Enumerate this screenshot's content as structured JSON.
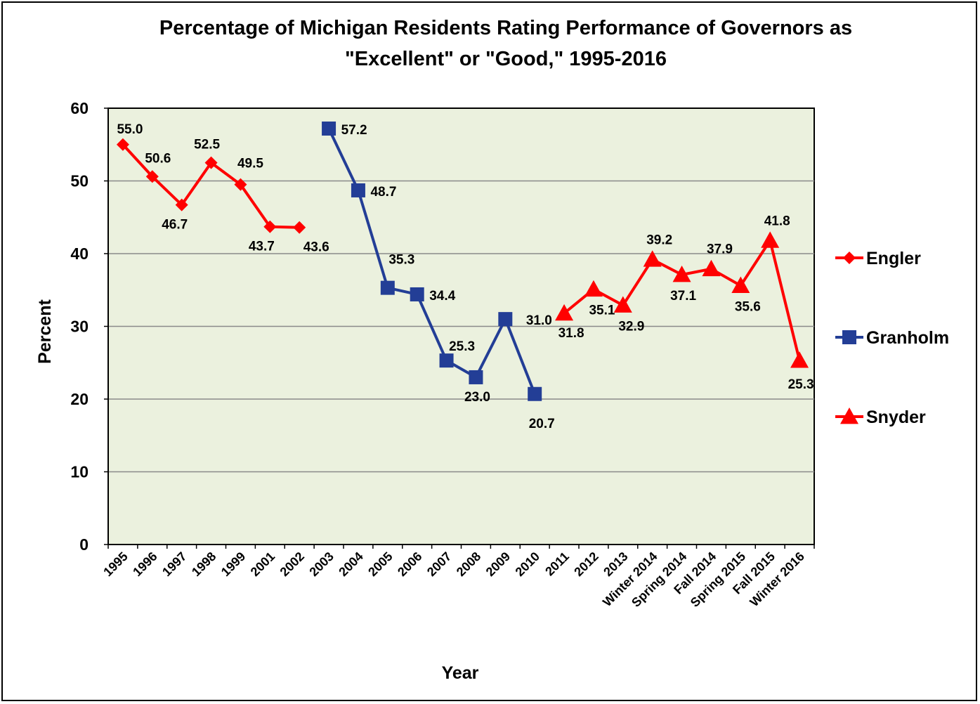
{
  "chart_data": {
    "type": "line",
    "title_lines": [
      "Percentage of Michigan Residents Rating Performance of Governors as",
      "\"Excellent\" or \"Good,\" 1995-2016"
    ],
    "xlabel": "Year",
    "ylabel": "Percent",
    "ylim": [
      0,
      60
    ],
    "yticks": [
      "0",
      "10",
      "20",
      "30",
      "40",
      "50",
      "60"
    ],
    "grid": true,
    "legend_position": "right",
    "plot_background": "#ebf1de",
    "categories": [
      "1995",
      "1996",
      "1997",
      "1998",
      "1999",
      "2001",
      "2002",
      "2003",
      "2004",
      "2005",
      "2006",
      "2007",
      "2008",
      "2009",
      "2010",
      "2011",
      "2012",
      "2013",
      "Winter 2014",
      "Spring 2014",
      "Fall 2014",
      "Spring 2015",
      "Fall 2015",
      "Winter 2016"
    ],
    "series": [
      {
        "name": "Engler",
        "color": "#ff0000",
        "marker": "diamond",
        "values": [
          55.0,
          50.6,
          46.7,
          52.5,
          49.5,
          43.7,
          43.6,
          null,
          null,
          null,
          null,
          null,
          null,
          null,
          null,
          null,
          null,
          null,
          null,
          null,
          null,
          null,
          null,
          null
        ],
        "labels": [
          "55.0",
          "50.6",
          "46.7",
          "52.5",
          "49.5",
          "43.7",
          "43.6"
        ]
      },
      {
        "name": "Granholm",
        "color": "#233e96",
        "marker": "square",
        "values": [
          null,
          null,
          null,
          null,
          null,
          null,
          null,
          57.2,
          48.7,
          35.3,
          34.4,
          25.3,
          23.0,
          31.0,
          20.7,
          null,
          null,
          null,
          null,
          null,
          null,
          null,
          null,
          null
        ],
        "labels": [
          "57.2",
          "48.7",
          "35.3",
          "34.4",
          "25.3",
          "23.0",
          "31.0",
          "20.7"
        ]
      },
      {
        "name": "Snyder",
        "color": "#ff0000",
        "marker": "triangle",
        "values": [
          null,
          null,
          null,
          null,
          null,
          null,
          null,
          null,
          null,
          null,
          null,
          null,
          null,
          null,
          null,
          31.8,
          35.1,
          32.9,
          39.2,
          37.1,
          37.9,
          35.6,
          41.8,
          25.3
        ],
        "labels": [
          "31.8",
          "35.1",
          "32.9",
          "39.2",
          "37.1",
          "37.9",
          "35.6",
          "41.8",
          "25.3"
        ]
      }
    ]
  }
}
